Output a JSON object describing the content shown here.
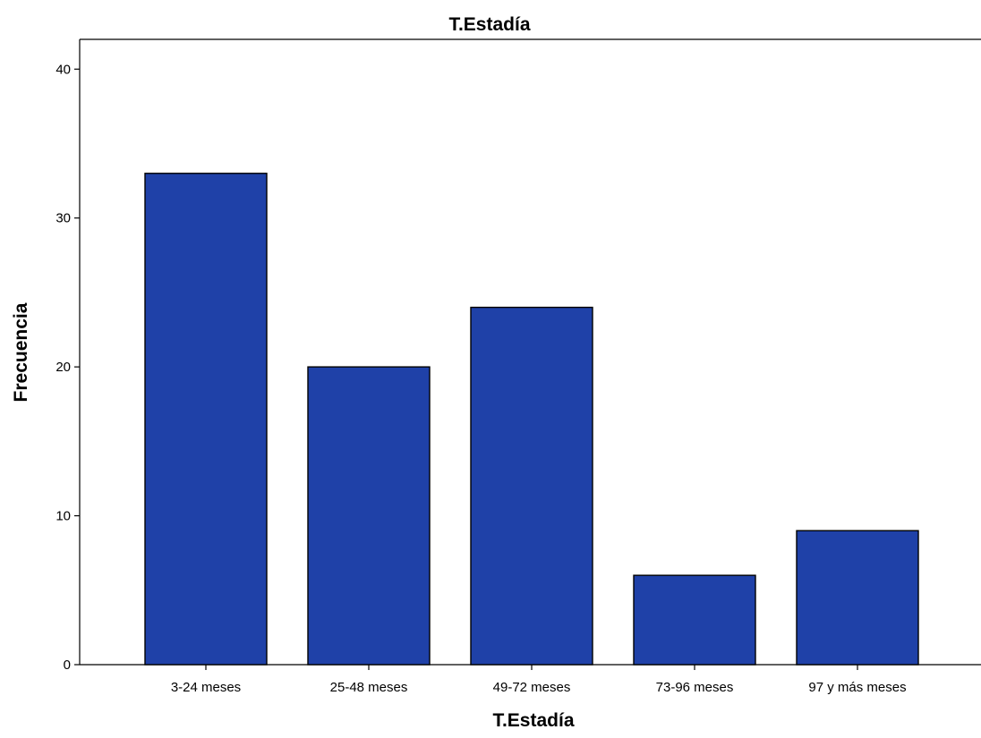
{
  "chart_data": {
    "type": "bar",
    "title": "T.Estadía",
    "xlabel": "T.Estadía",
    "ylabel": "Frecuencia",
    "categories": [
      "3-24 meses",
      "25-48 meses",
      "49-72 meses",
      "73-96 meses",
      "97 y más meses"
    ],
    "values": [
      33,
      20,
      24,
      6,
      9
    ],
    "ylim": [
      0,
      42
    ],
    "yticks": [
      0,
      10,
      20,
      30,
      40
    ],
    "grid": false,
    "legend": "none",
    "colors": {
      "bar_fill": "#1f41a8",
      "bar_stroke": "#000000",
      "axis": "#000000",
      "background": "#ffffff"
    }
  }
}
